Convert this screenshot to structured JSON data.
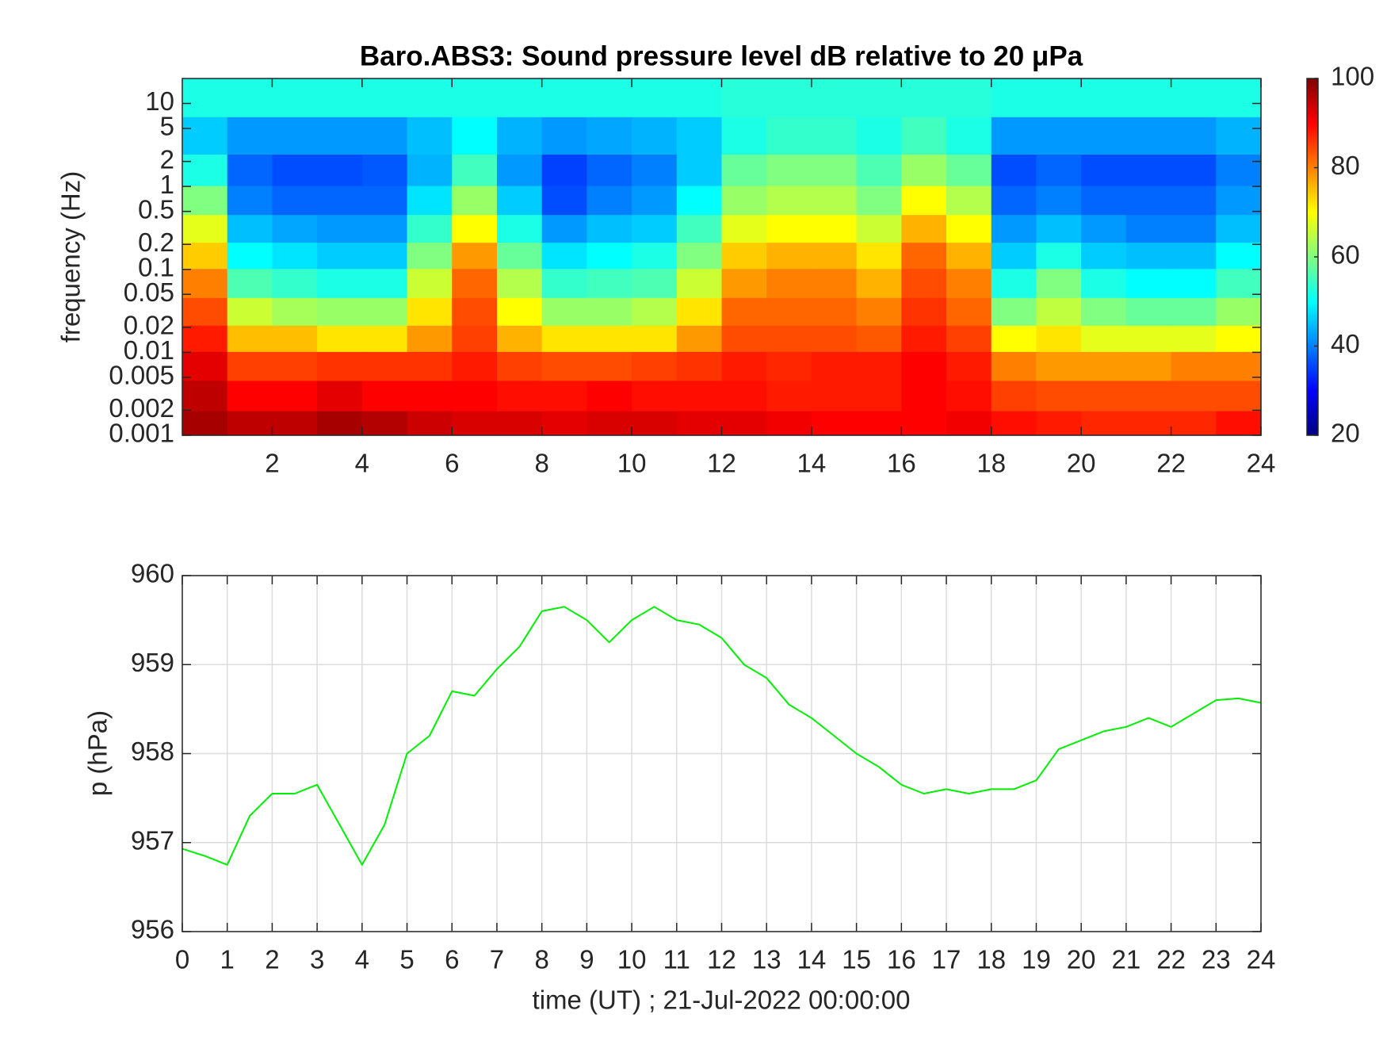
{
  "chart_data": [
    {
      "type": "heatmap",
      "title": "Baro.ABS3: Sound pressure level dB relative to 20 μPa",
      "ylabel": "frequency (Hz)",
      "yscale": "log",
      "colormap": "jet",
      "xlim": [
        0,
        24
      ],
      "xticks": [
        2,
        4,
        6,
        8,
        10,
        12,
        14,
        16,
        18,
        20,
        22,
        24
      ],
      "ylim": [
        0.001,
        20
      ],
      "yticks": [
        0.001,
        0.002,
        0.005,
        0.01,
        0.02,
        0.05,
        0.1,
        0.2,
        0.5,
        1,
        2,
        5,
        10
      ],
      "clim": [
        20,
        100
      ],
      "cticks": [
        20,
        40,
        60,
        80,
        100
      ],
      "x": [
        0.5,
        1.5,
        2.5,
        3.5,
        4.5,
        5.5,
        6.5,
        7.5,
        8.5,
        9.5,
        10.5,
        11.5,
        12.5,
        13.5,
        14.5,
        15.5,
        16.5,
        17.5,
        18.5,
        19.5,
        20.5,
        21.5,
        22.5,
        23.5
      ],
      "y": [
        0.0013,
        0.003,
        0.007,
        0.015,
        0.03,
        0.07,
        0.15,
        0.3,
        0.7,
        1.5,
        4,
        12
      ],
      "z": [
        [
          97,
          95,
          95,
          97,
          96,
          94,
          93,
          93,
          92,
          93,
          93,
          92,
          92,
          91,
          90,
          90,
          90,
          91,
          89,
          88,
          87,
          87,
          87,
          89
        ],
        [
          95,
          90,
          90,
          92,
          90,
          90,
          90,
          89,
          89,
          90,
          89,
          89,
          89,
          88,
          88,
          88,
          90,
          89,
          85,
          84,
          84,
          84,
          84,
          84
        ],
        [
          92,
          85,
          85,
          86,
          86,
          86,
          88,
          85,
          84,
          84,
          85,
          86,
          88,
          87,
          88,
          88,
          90,
          88,
          80,
          78,
          78,
          78,
          80,
          80
        ],
        [
          88,
          75,
          75,
          72,
          72,
          78,
          85,
          76,
          72,
          72,
          72,
          78,
          84,
          84,
          84,
          83,
          88,
          85,
          70,
          72,
          68,
          68,
          68,
          70
        ],
        [
          84,
          66,
          63,
          62,
          62,
          72,
          84,
          70,
          62,
          62,
          64,
          72,
          82,
          82,
          82,
          80,
          86,
          82,
          60,
          65,
          60,
          58,
          58,
          62
        ],
        [
          80,
          56,
          54,
          52,
          52,
          66,
          82,
          64,
          54,
          55,
          56,
          66,
          78,
          80,
          80,
          76,
          84,
          80,
          52,
          60,
          52,
          50,
          50,
          55
        ],
        [
          74,
          50,
          48,
          46,
          46,
          60,
          78,
          58,
          48,
          50,
          52,
          60,
          74,
          76,
          76,
          72,
          82,
          76,
          46,
          52,
          46,
          45,
          45,
          50
        ],
        [
          68,
          45,
          43,
          42,
          42,
          54,
          70,
          52,
          42,
          45,
          46,
          55,
          68,
          70,
          70,
          66,
          76,
          70,
          42,
          45,
          42,
          40,
          40,
          45
        ],
        [
          60,
          40,
          38,
          38,
          38,
          48,
          62,
          46,
          36,
          40,
          42,
          50,
          62,
          64,
          64,
          60,
          70,
          64,
          38,
          40,
          38,
          38,
          38,
          42
        ],
        [
          52,
          38,
          36,
          36,
          37,
          44,
          55,
          42,
          35,
          38,
          40,
          46,
          58,
          60,
          60,
          56,
          62,
          58,
          36,
          38,
          36,
          36,
          36,
          40
        ],
        [
          46,
          42,
          42,
          42,
          42,
          45,
          50,
          44,
          42,
          43,
          44,
          46,
          52,
          54,
          54,
          52,
          55,
          52,
          42,
          42,
          42,
          42,
          42,
          44
        ],
        [
          52,
          52,
          52,
          52,
          52,
          52,
          52,
          52,
          52,
          52,
          52,
          52,
          53,
          53,
          53,
          53,
          53,
          53,
          52,
          52,
          52,
          52,
          52,
          52
        ]
      ]
    },
    {
      "type": "line",
      "xlabel": "time (UT) ; 21-Jul-2022 00:00:00",
      "ylabel": "p (hPa)",
      "color": "#00ee00",
      "grid": true,
      "xlim": [
        0,
        24
      ],
      "xticks": [
        0,
        1,
        2,
        3,
        4,
        5,
        6,
        7,
        8,
        9,
        10,
        11,
        12,
        13,
        14,
        15,
        16,
        17,
        18,
        19,
        20,
        21,
        22,
        23,
        24
      ],
      "ylim": [
        956,
        960
      ],
      "yticks": [
        956,
        957,
        958,
        959,
        960
      ],
      "x": [
        0,
        0.5,
        1,
        1.5,
        2,
        2.5,
        3,
        3.5,
        4,
        4.5,
        5,
        5.5,
        6,
        6.5,
        7,
        7.5,
        8,
        8.5,
        9,
        9.5,
        10,
        10.5,
        11,
        11.5,
        12,
        12.5,
        13,
        13.5,
        14,
        14.5,
        15,
        15.5,
        16,
        16.5,
        17,
        17.5,
        18,
        18.5,
        19,
        19.5,
        20,
        20.5,
        21,
        21.5,
        22,
        22.5,
        23,
        23.5,
        24
      ],
      "values": [
        956.93,
        956.85,
        956.75,
        957.3,
        957.55,
        957.55,
        957.65,
        957.2,
        956.75,
        957.2,
        958.0,
        958.2,
        958.7,
        958.65,
        958.95,
        959.2,
        959.6,
        959.65,
        959.5,
        959.25,
        959.5,
        959.65,
        959.5,
        959.45,
        959.3,
        959.0,
        958.85,
        958.55,
        958.4,
        958.2,
        958.0,
        957.85,
        957.65,
        957.55,
        957.6,
        957.55,
        957.6,
        957.6,
        957.7,
        958.05,
        958.15,
        958.25,
        958.3,
        958.4,
        958.3,
        958.45,
        958.6,
        958.62,
        958.57
      ]
    }
  ]
}
